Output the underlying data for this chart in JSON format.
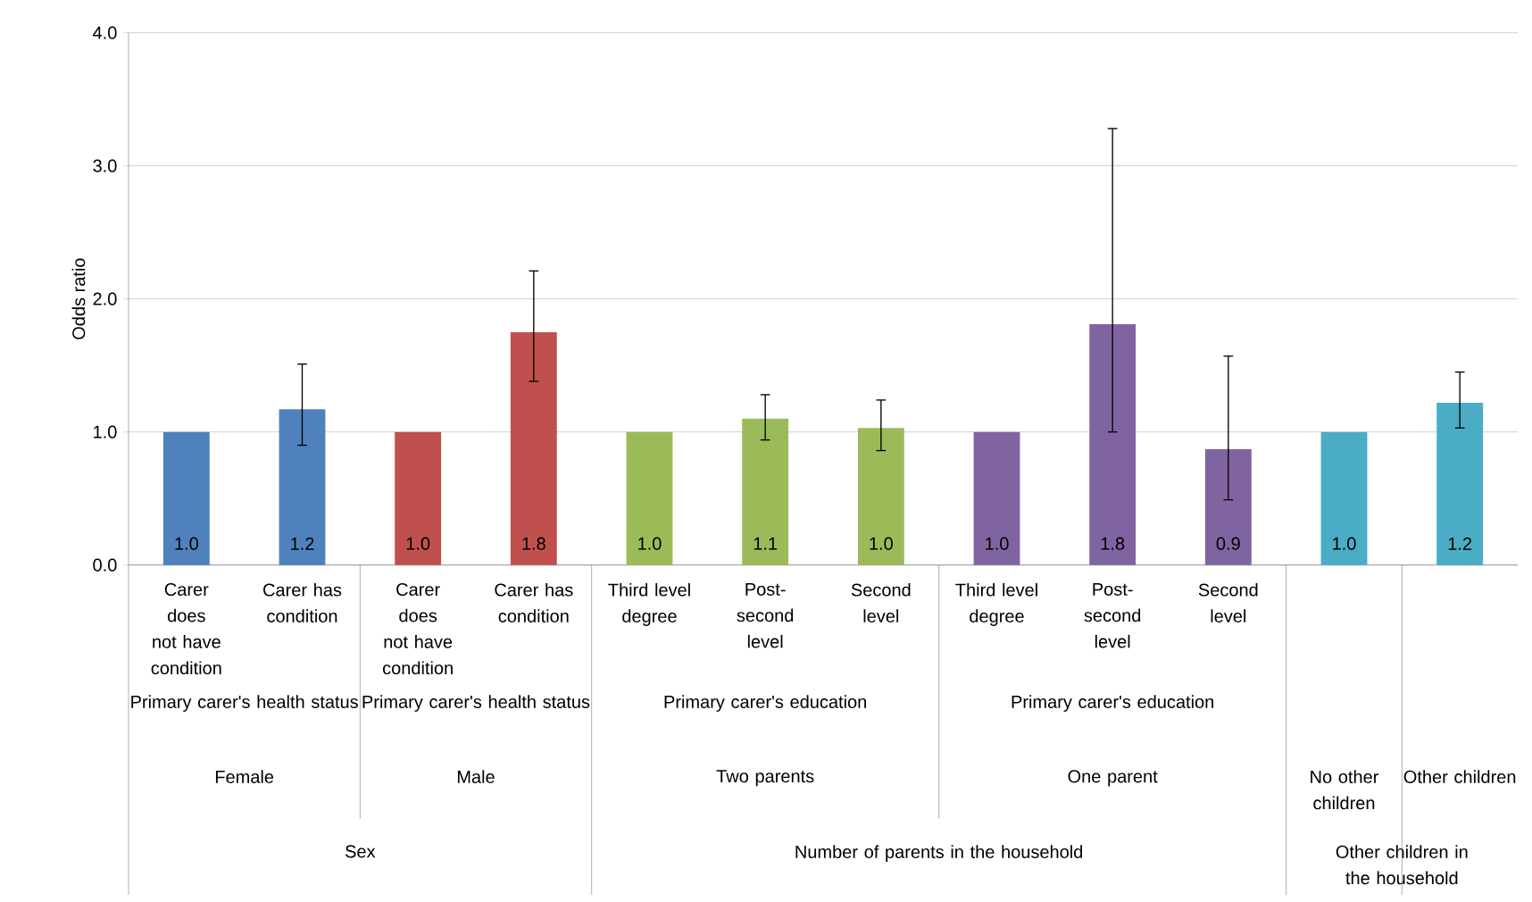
{
  "chart_data": {
    "type": "bar",
    "ylabel": "Odds ratio",
    "categories": [
      "Carer does not have condition",
      "Carer has condition",
      "Carer does not have condition",
      "Carer has condition",
      "Third level degree",
      "Post-second level",
      "Second level",
      "Third level degree",
      "Post-second level",
      "Second level",
      null,
      null
    ],
    "values": [
      1.0,
      1.17,
      1.0,
      1.75,
      1.0,
      1.1,
      1.03,
      1.0,
      1.81,
      0.87,
      1.0,
      1.22
    ],
    "errors": [
      null,
      [
        0.9,
        1.51
      ],
      null,
      [
        1.38,
        2.21
      ],
      null,
      [
        0.94,
        1.28
      ],
      [
        0.86,
        1.24
      ],
      null,
      [
        1.0,
        3.28
      ],
      [
        0.49,
        1.57
      ],
      null,
      [
        1.03,
        1.45
      ]
    ],
    "colors": [
      "#4f81bd",
      "#4f81bd",
      "#c0504d",
      "#c0504d",
      "#9bbb59",
      "#9bbb59",
      "#9bbb59",
      "#8064a2",
      "#8064a2",
      "#8064a2",
      "#4bacc6",
      "#4bacc6"
    ],
    "value_labels": [
      "1.0",
      "1.2",
      "1.0",
      "1.8",
      "1.0",
      "1.1",
      "1.0",
      "1.0",
      "1.8",
      "0.9",
      "1.0",
      "1.2"
    ],
    "ylim": [
      0,
      4
    ],
    "yticks": [
      {
        "value": 0,
        "label": "0.0"
      },
      {
        "value": 1,
        "label": "1.0"
      },
      {
        "value": 2,
        "label": "2.0"
      },
      {
        "value": 3,
        "label": "3.0"
      },
      {
        "value": 4,
        "label": "4.0"
      }
    ],
    "grid": "y",
    "annotations": [
      "Primary carer's health status",
      "Primary carer's health status",
      "Primary carer's education",
      "Primary carer's education",
      "Female",
      "Male",
      "Two parents",
      "One parent",
      "No other children",
      "Other children",
      "Sex",
      "Number of parents in the household",
      "Other children in the household"
    ]
  }
}
